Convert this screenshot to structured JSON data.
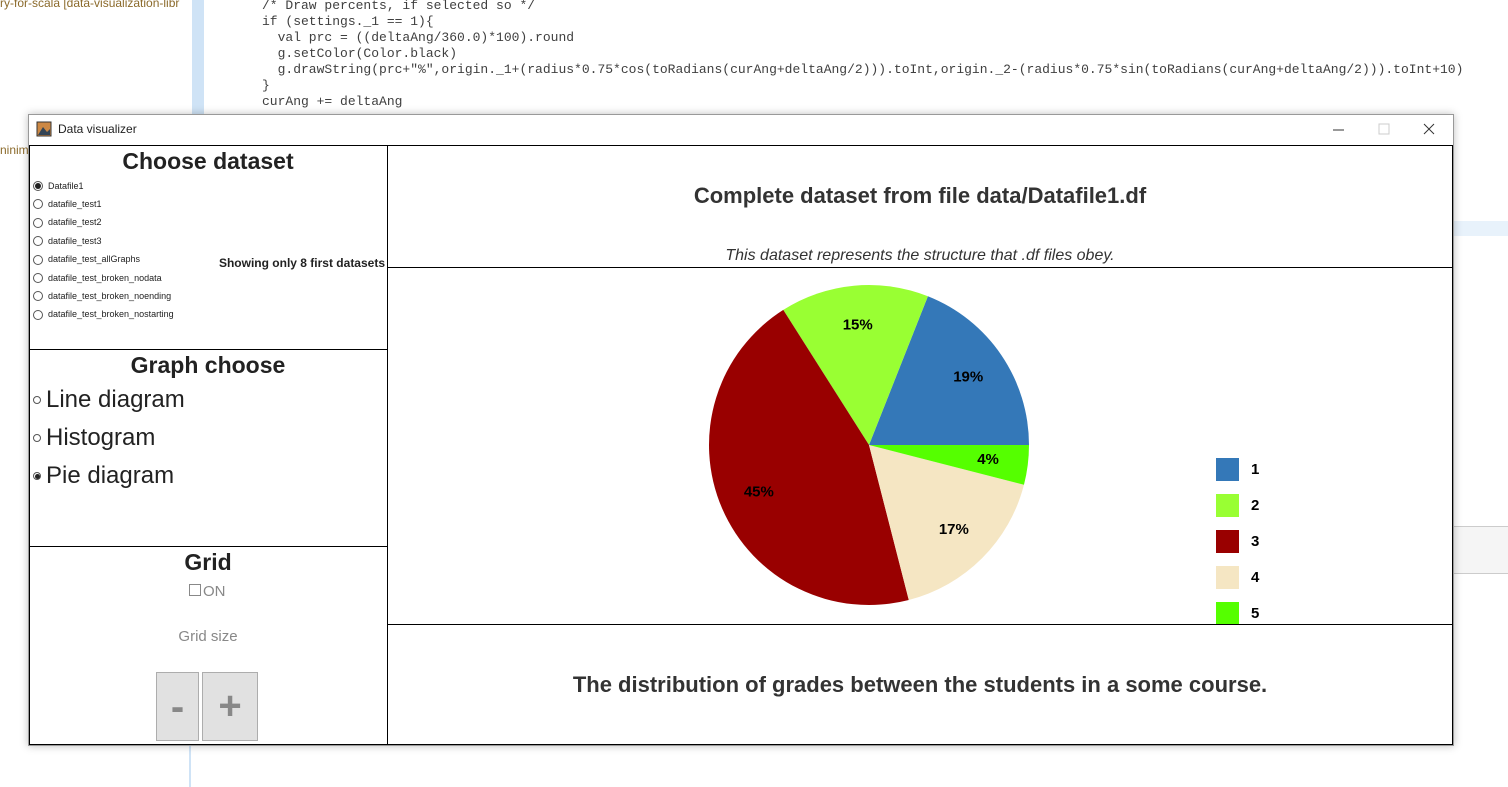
{
  "ide": {
    "project_label": "ry-for-scala [data-visualization-libr",
    "side_fragment": "ninim",
    "code_lines": [
      "/* Draw percents, if selected so */",
      "if (settings._1 == 1){",
      "  val prc = ((deltaAng/360.0)*100).round",
      "  g.setColor(Color.black)",
      "  g.drawString(prc+\"%\",origin._1+(radius*0.75*cos(toRadians(curAng+deltaAng/2))).toInt,origin._2-(radius*0.75*sin(toRadians(curAng+deltaAng/2))).toInt+10)",
      "}",
      "curAng += deltaAng"
    ]
  },
  "window": {
    "title": "Data visualizer"
  },
  "dataset_panel": {
    "title": "Choose dataset",
    "options": [
      "Datafile1",
      "datafile_test1",
      "datafile_test2",
      "datafile_test3",
      "datafile_test_allGraphs",
      "datafile_test_broken_nodata",
      "datafile_test_broken_noending",
      "datafile_test_broken_nostarting"
    ],
    "selected": 0,
    "note": "Showing only 8 first datasets"
  },
  "graph_panel": {
    "title": "Graph choose",
    "options": [
      "Line diagram",
      "Histogram",
      "Pie diagram"
    ],
    "selected": 2
  },
  "grid_panel": {
    "title": "Grid",
    "checkbox_label": "ON",
    "size_label": "Grid size",
    "minus": "-",
    "plus": "+"
  },
  "chart_data": {
    "type": "pie",
    "title": "Complete dataset from file data/Datafile1.df",
    "subtitle": "This dataset represents the structure that .df files obey.",
    "caption": "The distribution of grades between the students in a some course.",
    "categories": [
      "1",
      "2",
      "3",
      "4",
      "5"
    ],
    "values": [
      19,
      15,
      45,
      17,
      4
    ],
    "value_labels": [
      "19%",
      "15%",
      "45%",
      "17%",
      "4%"
    ],
    "colors": [
      "#3478b8",
      "#99ff33",
      "#990000",
      "#f5e6c3",
      "#55ff00"
    ],
    "legend": "right"
  }
}
